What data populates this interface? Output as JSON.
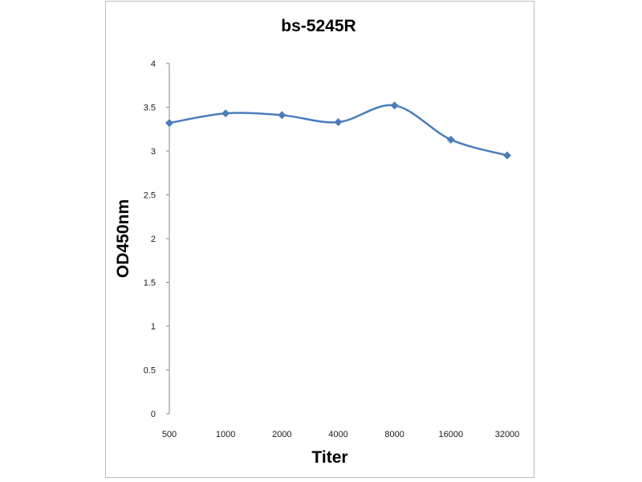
{
  "chart_data": {
    "type": "line",
    "title": "bs-5245R",
    "xlabel": "Titer",
    "ylabel": "OD450nm",
    "categories": [
      "500",
      "1000",
      "2000",
      "4000",
      "8000",
      "16000",
      "32000"
    ],
    "yticks": [
      "0",
      "0.5",
      "1",
      "1.5",
      "2",
      "2.5",
      "3",
      "3.5",
      "4"
    ],
    "ylim": [
      0,
      4
    ],
    "grid": false,
    "legend": "none",
    "series": [
      {
        "color": "#4a7ebb",
        "marker": "diamond",
        "smooth": true,
        "values": [
          3.32,
          3.43,
          3.41,
          3.33,
          3.52,
          3.13,
          2.95
        ]
      }
    ]
  }
}
